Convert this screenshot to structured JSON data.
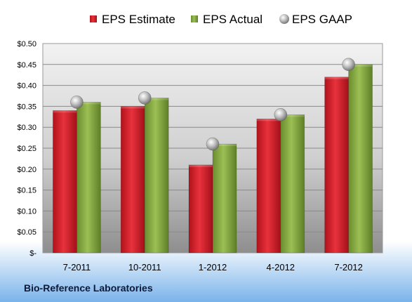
{
  "chart_data": {
    "type": "bar",
    "title": "",
    "xlabel": "",
    "ylabel": "",
    "categories": [
      "7-2011",
      "10-2011",
      "1-2012",
      "4-2012",
      "7-2012"
    ],
    "series": [
      {
        "name": "EPS Estimate",
        "kind": "bar",
        "color": "#cc1f2a",
        "values": [
          0.34,
          0.35,
          0.21,
          0.32,
          0.42
        ]
      },
      {
        "name": "EPS Actual",
        "kind": "bar",
        "color": "#7fa33e",
        "values": [
          0.36,
          0.37,
          0.26,
          0.33,
          0.45
        ]
      },
      {
        "name": "EPS GAAP",
        "kind": "marker",
        "color": "#a9a9a9",
        "values": [
          0.36,
          0.37,
          0.26,
          0.33,
          0.45
        ]
      }
    ],
    "ylim": [
      0,
      0.5
    ],
    "yticks": [
      0,
      0.05,
      0.1,
      0.15,
      0.2,
      0.25,
      0.3,
      0.35,
      0.4,
      0.45,
      0.5
    ],
    "ytick_labels": [
      "$-",
      "$0.05",
      "$0.10",
      "$0.15",
      "$0.20",
      "$0.25",
      "$0.30",
      "$0.35",
      "$0.40",
      "$0.45",
      "$0.50"
    ],
    "grid": true,
    "legend": "top",
    "company": "Bio-Reference Laboratories"
  }
}
